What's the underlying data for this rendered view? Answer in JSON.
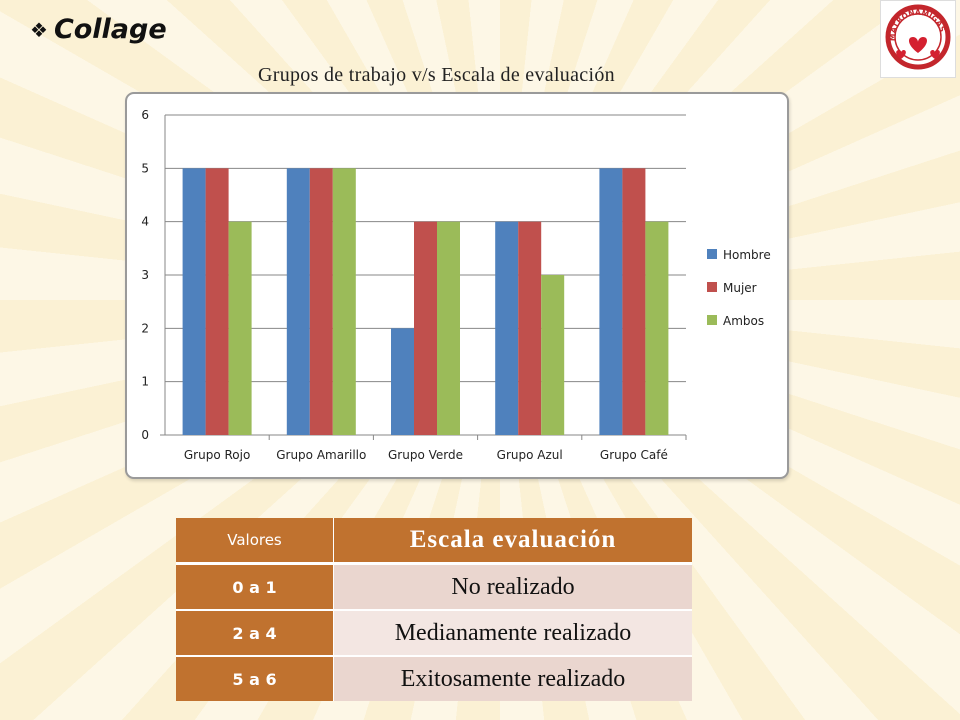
{
  "heading": {
    "bullet": "❖",
    "text": "Collage"
  },
  "logo": {
    "text": "MATRONAMIGAS",
    "icon": "hearts-logo-icon"
  },
  "chart_data": {
    "type": "bar",
    "title": "Grupos de trabajo v/s Escala de evaluación",
    "categories": [
      "Grupo Rojo",
      "Grupo Amarillo",
      "Grupo Verde",
      "Grupo Azul",
      "Grupo Café"
    ],
    "series": [
      {
        "name": "Hombre",
        "color": "#4f81bd",
        "values": [
          5,
          5,
          2,
          4,
          5
        ]
      },
      {
        "name": "Mujer",
        "color": "#c0504d",
        "values": [
          5,
          5,
          4,
          4,
          5
        ]
      },
      {
        "name": "Ambos",
        "color": "#9bbb59",
        "values": [
          4,
          5,
          4,
          3,
          4
        ]
      }
    ],
    "ylim": [
      0,
      6
    ],
    "yticks": [
      0,
      1,
      2,
      3,
      4,
      5,
      6
    ],
    "grid": true,
    "legend_position": "right"
  },
  "table": {
    "headers": [
      "Valores",
      "Escala evaluación"
    ],
    "rows": [
      [
        "0 a 1",
        "No realizado"
      ],
      [
        "2 a 4",
        "Medianamente realizado"
      ],
      [
        "5 a 6",
        "Exitosamente realizado"
      ]
    ]
  }
}
